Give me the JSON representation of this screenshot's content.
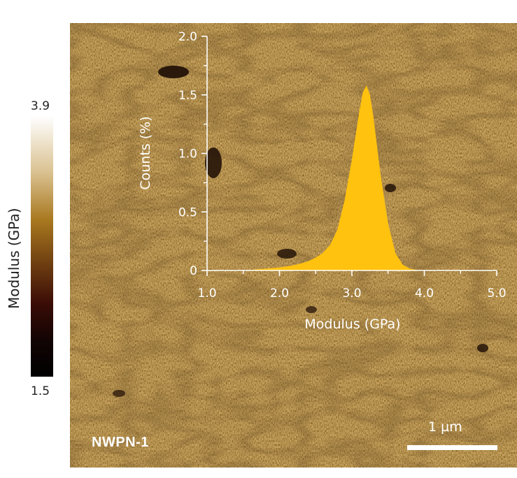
{
  "colorbar": {
    "max_label": "3.9",
    "min_label": "1.5",
    "label": "Modulus (GPa)"
  },
  "image": {
    "sample_label": "NWPN-1",
    "scale_label": "1 µm"
  },
  "colors": {
    "histogram_fill": "#ffc20e",
    "axis": "#ffffff",
    "map_base": "#a87a2c"
  },
  "chart_data": {
    "type": "histogram",
    "xlabel": "Modulus (GPa)",
    "ylabel": "Counts (%)",
    "xlim": [
      1.0,
      5.0
    ],
    "ylim": [
      0,
      2.0
    ],
    "xticks": [
      "1.0",
      "2.0",
      "3.0",
      "4.0",
      "5.0"
    ],
    "yticks": [
      "0",
      "0.5",
      "1.0",
      "1.5",
      "2.0"
    ],
    "x": [
      1.5,
      1.6,
      1.7,
      1.8,
      1.9,
      2.0,
      2.1,
      2.2,
      2.3,
      2.4,
      2.5,
      2.6,
      2.7,
      2.8,
      2.9,
      3.0,
      3.05,
      3.1,
      3.15,
      3.2,
      3.25,
      3.3,
      3.35,
      3.4,
      3.5,
      3.6,
      3.7,
      3.8,
      3.9,
      4.0
    ],
    "values": [
      0.0,
      0.005,
      0.01,
      0.015,
      0.02,
      0.025,
      0.035,
      0.045,
      0.06,
      0.08,
      0.11,
      0.15,
      0.22,
      0.35,
      0.6,
      0.95,
      1.15,
      1.35,
      1.52,
      1.58,
      1.5,
      1.3,
      1.05,
      0.8,
      0.4,
      0.15,
      0.05,
      0.015,
      0.005,
      0.0
    ]
  }
}
